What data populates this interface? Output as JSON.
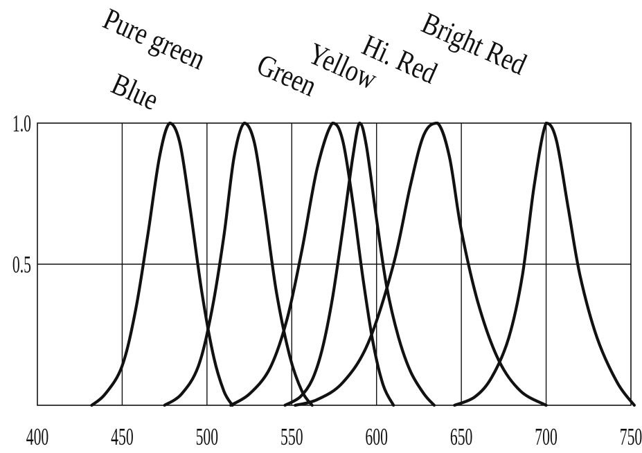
{
  "chart_data": {
    "type": "line",
    "title": "",
    "xlabel": "",
    "ylabel": "",
    "xlim": [
      400,
      750
    ],
    "ylim": [
      0,
      1.0
    ],
    "grid": true,
    "legend": "none",
    "line_color": "#111111",
    "x_ticks": [
      {
        "value": 400,
        "label": "400"
      },
      {
        "value": 450,
        "label": "450"
      },
      {
        "value": 500,
        "label": "500"
      },
      {
        "value": 550,
        "label": "550"
      },
      {
        "value": 600,
        "label": "600"
      },
      {
        "value": 650,
        "label": "650"
      },
      {
        "value": 700,
        "label": "700"
      },
      {
        "value": 750,
        "label": "750"
      }
    ],
    "y_ticks": [
      {
        "value": 0.5,
        "label": "0.5"
      },
      {
        "value": 1.0,
        "label": "1.0"
      }
    ],
    "series": [
      {
        "name": "Blue",
        "x": [
          432,
          440,
          450,
          458,
          465,
          472,
          478,
          484,
          490,
          497,
          504,
          510,
          515
        ],
        "y": [
          0,
          0.04,
          0.14,
          0.34,
          0.6,
          0.88,
          1.0,
          0.93,
          0.7,
          0.4,
          0.17,
          0.05,
          0
        ]
      },
      {
        "name": "Pure green",
        "x": [
          475,
          485,
          495,
          503,
          510,
          516,
          522,
          528,
          534,
          541,
          549,
          556,
          562
        ],
        "y": [
          0,
          0.04,
          0.14,
          0.34,
          0.6,
          0.88,
          1.0,
          0.93,
          0.7,
          0.4,
          0.17,
          0.05,
          0
        ]
      },
      {
        "name": "Green",
        "x": [
          514,
          525,
          537,
          547,
          556,
          565,
          574,
          580,
          586,
          592,
          598,
          604,
          610
        ],
        "y": [
          0,
          0.04,
          0.13,
          0.3,
          0.55,
          0.84,
          1.0,
          0.94,
          0.72,
          0.45,
          0.22,
          0.07,
          0
        ]
      },
      {
        "name": "Yellow",
        "x": [
          546,
          555,
          562,
          568,
          574,
          580,
          586,
          590,
          594,
          600,
          606,
          613,
          620,
          628,
          634
        ],
        "y": [
          0,
          0.03,
          0.09,
          0.2,
          0.38,
          0.62,
          0.88,
          1.0,
          0.92,
          0.66,
          0.42,
          0.24,
          0.12,
          0.04,
          0
        ]
      },
      {
        "name": "Hi. Red",
        "x": [
          552,
          565,
          580,
          595,
          610,
          620,
          628,
          636,
          643,
          650,
          660,
          672,
          685,
          700
        ],
        "y": [
          0,
          0.02,
          0.08,
          0.22,
          0.5,
          0.78,
          0.96,
          1.0,
          0.88,
          0.62,
          0.36,
          0.16,
          0.05,
          0
        ]
      },
      {
        "name": "Bright Red",
        "x": [
          646,
          658,
          668,
          678,
          686,
          693,
          700,
          706,
          713,
          720,
          730,
          742,
          752
        ],
        "y": [
          0,
          0.03,
          0.1,
          0.24,
          0.46,
          0.78,
          1.0,
          0.94,
          0.7,
          0.46,
          0.24,
          0.08,
          0
        ]
      }
    ]
  }
}
